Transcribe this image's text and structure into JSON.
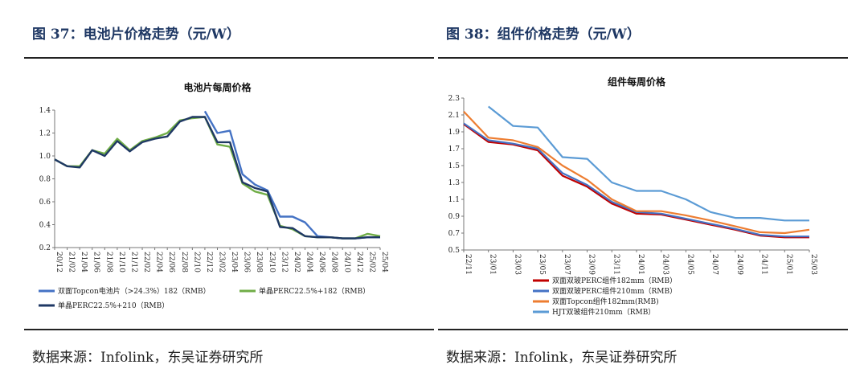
{
  "left": {
    "figure_title": "图 37：电池片价格走势（元/W）",
    "source": "数据来源：Infolink，东吴证券研究所"
  },
  "right": {
    "figure_title": "图 38：组件价格走势（元/W）",
    "source": "数据来源：Infolink，东吴证券研究所"
  },
  "chart_data": [
    {
      "type": "line",
      "title": "电池片每周价格",
      "xlabel": "",
      "ylabel": "",
      "ylim": [
        0.2,
        1.4
      ],
      "yticks": [
        "0.2",
        "0.4",
        "0.6",
        "0.8",
        "1.0",
        "1.2",
        "1.4"
      ],
      "x": [
        "20/12",
        "21/02",
        "21/04",
        "21/06",
        "21/08",
        "21/10",
        "21/12",
        "22/02",
        "22/04",
        "22/06",
        "22/08",
        "22/10",
        "22/12",
        "23/02",
        "23/04",
        "23/06",
        "23/08",
        "23/10",
        "23/12",
        "24/02",
        "24/04",
        "24/06",
        "24/08",
        "24/10",
        "24/12",
        "25/02",
        "25/04"
      ],
      "legend_position": "bottom",
      "series": [
        {
          "name": "双面Topcon电池片（>24.3%）182（RMB）",
          "color": "#4472c4",
          "start": "22/12",
          "values": [
            null,
            null,
            null,
            null,
            null,
            null,
            null,
            null,
            null,
            null,
            null,
            null,
            1.39,
            1.2,
            1.22,
            0.84,
            0.75,
            0.7,
            0.47,
            0.47,
            0.42,
            0.3,
            0.29,
            0.28,
            0.28,
            0.29,
            0.29
          ]
        },
        {
          "name": "单晶PERC22.5%+182（RMB）",
          "color": "#70ad47",
          "values": [
            0.97,
            0.91,
            0.91,
            1.05,
            1.02,
            1.15,
            1.05,
            1.13,
            1.16,
            1.2,
            1.31,
            1.33,
            1.34,
            1.1,
            1.08,
            0.76,
            0.69,
            0.66,
            0.39,
            0.36,
            0.3,
            0.29,
            0.29,
            0.28,
            0.28,
            0.32,
            0.3
          ]
        },
        {
          "name": "单晶PERC22.5%+210（RMB）",
          "color": "#1f3864",
          "values": [
            0.97,
            0.91,
            0.9,
            1.05,
            1.0,
            1.13,
            1.04,
            1.12,
            1.15,
            1.17,
            1.3,
            1.34,
            1.34,
            1.12,
            1.12,
            0.77,
            0.72,
            0.69,
            0.38,
            0.37,
            0.3,
            0.29,
            0.29,
            0.28,
            0.28,
            0.29,
            0.29
          ]
        }
      ]
    },
    {
      "type": "line",
      "title": "组件每周价格",
      "xlabel": "",
      "ylabel": "",
      "ylim": [
        0.5,
        2.3
      ],
      "yticks": [
        "0.5",
        "0.7",
        "0.9",
        "1.1",
        "1.3",
        "1.5",
        "1.7",
        "1.9",
        "2.1",
        "2.3"
      ],
      "x": [
        "22/11",
        "23/01",
        "23/03",
        "23/05",
        "23/07",
        "23/09",
        "23/11",
        "24/01",
        "24/03",
        "24/05",
        "24/07",
        "24/09",
        "24/11",
        "25/01",
        "25/03"
      ],
      "legend_position": "bottom",
      "series": [
        {
          "name": "双面双玻PERC组件182mm（RMB）",
          "color": "#c00000",
          "values": [
            1.99,
            1.78,
            1.75,
            1.68,
            1.38,
            1.25,
            1.05,
            0.93,
            0.92,
            0.86,
            0.8,
            0.74,
            0.67,
            0.65,
            0.65
          ]
        },
        {
          "name": "双面双玻PERC组件210mm（RMB）",
          "color": "#4472c4",
          "values": [
            2.0,
            1.8,
            1.76,
            1.7,
            1.41,
            1.27,
            1.07,
            0.95,
            0.93,
            0.87,
            0.81,
            0.75,
            0.68,
            0.66,
            0.66
          ]
        },
        {
          "name": "双面Topcon组件182mm(RMB)",
          "color": "#ed7d31",
          "values": [
            2.14,
            1.83,
            1.8,
            1.72,
            1.5,
            1.33,
            1.1,
            0.96,
            0.96,
            0.91,
            0.85,
            0.78,
            0.71,
            0.7,
            0.74
          ]
        },
        {
          "name": "HJT双玻组件210mm（RMB）",
          "color": "#5b9bd5",
          "start": "23/01",
          "values": [
            null,
            2.2,
            1.97,
            1.95,
            1.6,
            1.58,
            1.3,
            1.2,
            1.2,
            1.1,
            0.95,
            0.88,
            0.88,
            0.85,
            0.85
          ]
        }
      ]
    }
  ]
}
